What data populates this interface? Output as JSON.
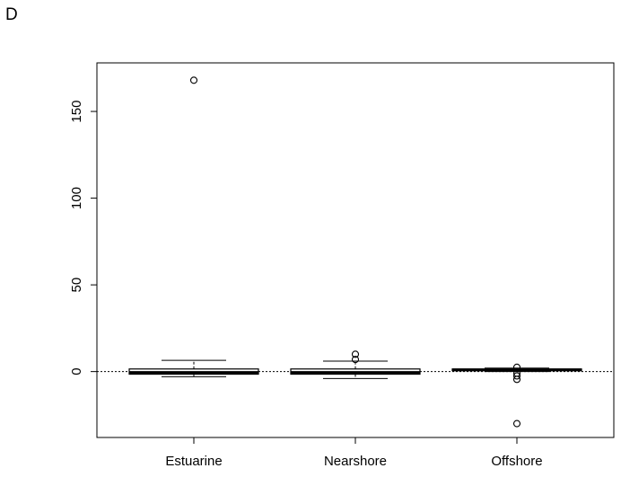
{
  "panel_label": "D",
  "chart_data": {
    "type": "box",
    "title": "",
    "xlabel": "",
    "ylabel": "",
    "categories": [
      "Estuarine",
      "Nearshore",
      "Offshore"
    ],
    "ylim": [
      -38,
      178
    ],
    "yticks": [
      0,
      50,
      100,
      150
    ],
    "reference_line": {
      "y": 0,
      "style": "dotted"
    },
    "grid": false,
    "boxes": [
      {
        "name": "Estuarine",
        "whisker_low": -3,
        "q1": -1.5,
        "median": -0.5,
        "q3": 1.5,
        "whisker_high": 6.5,
        "outliers": [
          168
        ]
      },
      {
        "name": "Nearshore",
        "whisker_low": -4,
        "q1": -1.5,
        "median": -0.5,
        "q3": 1.5,
        "whisker_high": 6,
        "outliers": [
          7,
          10
        ]
      },
      {
        "name": "Offshore",
        "whisker_low": 0,
        "q1": 0.5,
        "median": 1,
        "q3": 1.5,
        "whisker_high": 2,
        "outliers": [
          2.5,
          -1,
          -2.5,
          -4.5,
          -30
        ]
      }
    ]
  }
}
